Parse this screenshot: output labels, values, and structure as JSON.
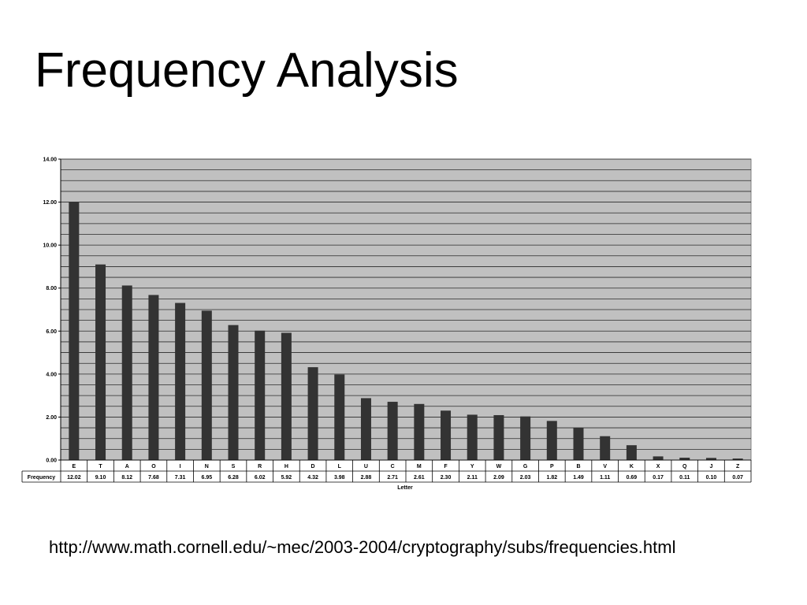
{
  "slide": {
    "title": "Frequency Analysis",
    "source_url": "http://www.math.cornell.edu/~mec/2003-2004/cryptography/subs/frequencies.html"
  },
  "chart_data": {
    "type": "bar",
    "xlabel": "Letter",
    "ylabel": "",
    "ylim": [
      0,
      14
    ],
    "yticks": [
      "0.00",
      "2.00",
      "4.00",
      "6.00",
      "8.00",
      "10.00",
      "12.00",
      "14.00"
    ],
    "grid": true,
    "data_table_label": "Frequency",
    "categories": [
      "E",
      "T",
      "A",
      "O",
      "I",
      "N",
      "S",
      "R",
      "H",
      "D",
      "L",
      "U",
      "C",
      "M",
      "F",
      "Y",
      "W",
      "G",
      "P",
      "B",
      "V",
      "K",
      "X",
      "Q",
      "J",
      "Z"
    ],
    "values": [
      12.02,
      9.1,
      8.12,
      7.68,
      7.31,
      6.95,
      6.28,
      6.02,
      5.92,
      4.32,
      3.98,
      2.88,
      2.71,
      2.61,
      2.3,
      2.11,
      2.09,
      2.03,
      1.82,
      1.49,
      1.11,
      0.69,
      0.17,
      0.11,
      0.1,
      0.07
    ],
    "value_labels": [
      "12.02",
      "9.10",
      "8.12",
      "7.68",
      "7.31",
      "6.95",
      "6.28",
      "6.02",
      "5.92",
      "4.32",
      "3.98",
      "2.88",
      "2.71",
      "2.61",
      "2.30",
      "2.11",
      "2.09",
      "2.03",
      "1.82",
      "1.49",
      "1.11",
      "0.69",
      "0.17",
      "0.11",
      "0.10",
      "0.07"
    ],
    "colors": {
      "plot_bg": "#c0c0c0",
      "bar": "#333333",
      "grid": "#2a2a2a",
      "axis": "#000000"
    }
  }
}
